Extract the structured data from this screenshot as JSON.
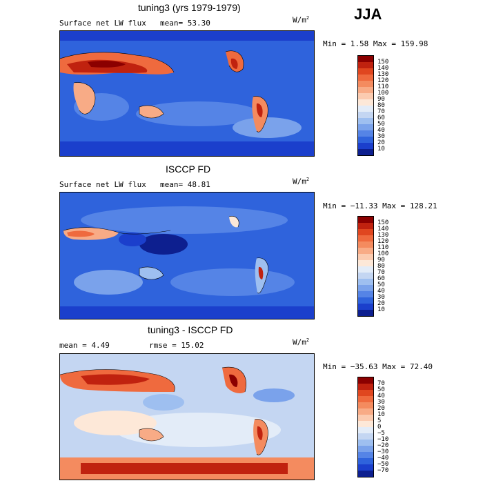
{
  "header": {
    "season": "JJA"
  },
  "panels": [
    {
      "title": "tuning3 (yrs 1979-1979)",
      "field": "Surface net LW flux",
      "stat1": "mean=  53.30",
      "stat2": "",
      "units": "W/m",
      "units_sup": "2",
      "minmax": "Min =   1.58 Max = 159.98",
      "scale": "abs"
    },
    {
      "title": "ISCCP FD",
      "field": "Surface net LW flux",
      "stat1": "mean=  48.81",
      "stat2": "",
      "units": "W/m",
      "units_sup": "2",
      "minmax": "Min = −11.33 Max = 128.21",
      "scale": "abs"
    },
    {
      "title": "tuning3 - ISCCP FD",
      "field": "mean =   4.49",
      "stat1": "rmse =  15.02",
      "stat2": "",
      "units": "W/m",
      "units_sup": "2",
      "minmax": "Min = −35.63 Max =  72.40",
      "scale": "diff"
    }
  ],
  "colorbars": {
    "abs": {
      "labels": [
        "150",
        "140",
        "130",
        "120",
        "110",
        "100",
        "90",
        "80",
        "70",
        "60",
        "50",
        "40",
        "30",
        "20",
        "10"
      ],
      "colors": [
        "#8b0000",
        "#c0220f",
        "#e0461f",
        "#ef6a3e",
        "#f48b5f",
        "#f8ab86",
        "#fbcbb0",
        "#fde8d8",
        "#e3ecf8",
        "#c4d6f2",
        "#9ebff0",
        "#7aa2eb",
        "#5584e6",
        "#2f63dc",
        "#1b3fcc",
        "#0d1f8f"
      ]
    },
    "diff": {
      "labels": [
        "70",
        "50",
        "40",
        "30",
        "20",
        "10",
        "5",
        "0",
        "−5",
        "−10",
        "−20",
        "−30",
        "−40",
        "−50",
        "−70"
      ],
      "colors": [
        "#8b0000",
        "#c0220f",
        "#e0461f",
        "#ef6a3e",
        "#f48b5f",
        "#f8ab86",
        "#fbcbb0",
        "#fde8d8",
        "#e3ecf8",
        "#c4d6f2",
        "#9ebff0",
        "#7aa2eb",
        "#5584e6",
        "#2f63dc",
        "#1b3fcc",
        "#0d1f8f"
      ]
    }
  }
}
